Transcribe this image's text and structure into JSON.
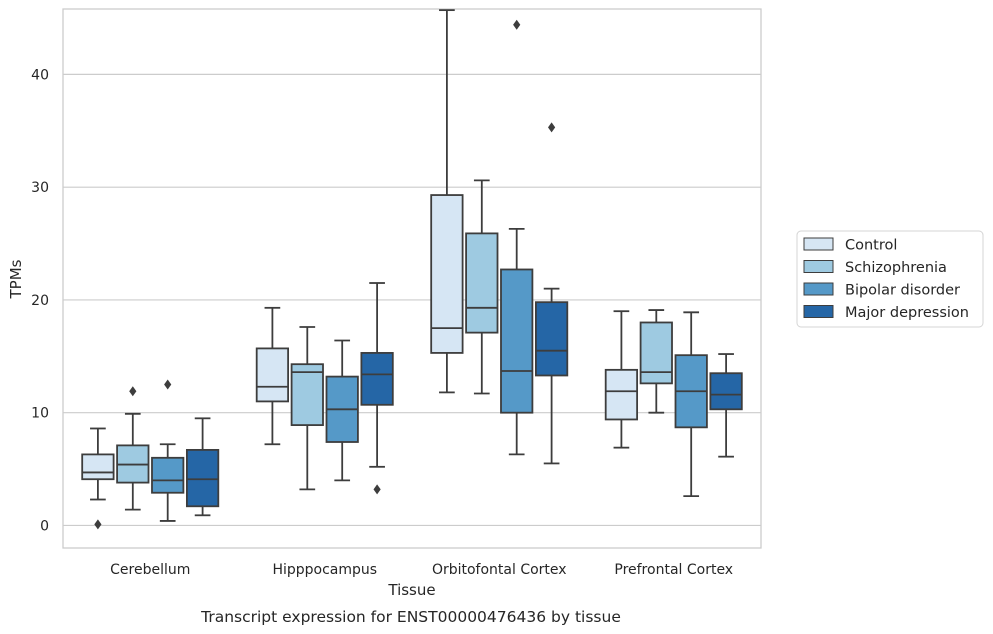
{
  "chart_data": {
    "type": "box",
    "caption": "Transcript expression for ENST00000476436 by tissue",
    "xlabel": "Tissue",
    "ylabel": "TPMs",
    "ylim": [
      -2,
      45.8
    ],
    "yticks": [
      0,
      10,
      20,
      30,
      40
    ],
    "grid": "horizontal",
    "legend_position": "right",
    "categories": [
      "Cerebellum",
      "Hipppocampus",
      "Orbitofontal Cortex",
      "Prefrontal Cortex"
    ],
    "series": [
      {
        "name": "Control",
        "color": "#d6e6f4",
        "boxes": [
          {
            "whislo": 2.3,
            "q1": 4.1,
            "med": 4.7,
            "q3": 6.3,
            "whishi": 8.6,
            "fliers": [
              0.1
            ]
          },
          {
            "whislo": 7.2,
            "q1": 11.0,
            "med": 12.3,
            "q3": 15.7,
            "whishi": 19.3,
            "fliers": []
          },
          {
            "whislo": 11.8,
            "q1": 15.3,
            "med": 17.5,
            "q3": 29.3,
            "whishi": 45.7,
            "fliers": []
          },
          {
            "whislo": 6.9,
            "q1": 9.4,
            "med": 11.9,
            "q3": 13.8,
            "whishi": 19.0,
            "fliers": []
          }
        ]
      },
      {
        "name": "Schizophrenia",
        "color": "#9ecae1",
        "boxes": [
          {
            "whislo": 1.4,
            "q1": 3.8,
            "med": 5.4,
            "q3": 7.1,
            "whishi": 9.9,
            "fliers": [
              11.9
            ]
          },
          {
            "whislo": 3.2,
            "q1": 8.9,
            "med": 13.6,
            "q3": 14.3,
            "whishi": 17.6,
            "fliers": []
          },
          {
            "whislo": 11.7,
            "q1": 17.1,
            "med": 19.3,
            "q3": 25.9,
            "whishi": 30.6,
            "fliers": []
          },
          {
            "whislo": 10.0,
            "q1": 12.6,
            "med": 13.6,
            "q3": 18.0,
            "whishi": 19.1,
            "fliers": []
          }
        ]
      },
      {
        "name": "Bipolar disorder",
        "color": "#5599c8",
        "boxes": [
          {
            "whislo": 0.4,
            "q1": 2.9,
            "med": 4.0,
            "q3": 6.0,
            "whishi": 7.2,
            "fliers": [
              12.5
            ]
          },
          {
            "whislo": 4.0,
            "q1": 7.4,
            "med": 10.3,
            "q3": 13.2,
            "whishi": 16.4,
            "fliers": []
          },
          {
            "whislo": 6.3,
            "q1": 10.0,
            "med": 13.7,
            "q3": 22.7,
            "whishi": 26.3,
            "fliers": [
              44.4
            ]
          },
          {
            "whislo": 2.6,
            "q1": 8.7,
            "med": 11.9,
            "q3": 15.1,
            "whishi": 18.9,
            "fliers": []
          }
        ]
      },
      {
        "name": "Major depression",
        "color": "#2566a6",
        "boxes": [
          {
            "whislo": 0.9,
            "q1": 1.7,
            "med": 4.1,
            "q3": 6.7,
            "whishi": 9.5,
            "fliers": []
          },
          {
            "whislo": 5.2,
            "q1": 10.7,
            "med": 13.4,
            "q3": 15.3,
            "whishi": 21.5,
            "fliers": [
              3.2
            ]
          },
          {
            "whislo": 5.5,
            "q1": 13.3,
            "med": 15.5,
            "q3": 19.8,
            "whishi": 21.0,
            "fliers": [
              35.3
            ]
          },
          {
            "whislo": 6.1,
            "q1": 10.3,
            "med": 11.6,
            "q3": 13.5,
            "whishi": 15.2,
            "fliers": []
          }
        ]
      }
    ]
  }
}
